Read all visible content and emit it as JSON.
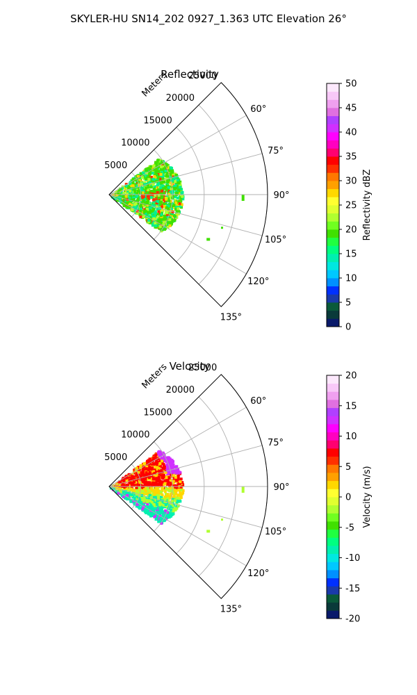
{
  "figure_title": "SKYLER-HU  SN14_202  0927_1.363 UTC Elevation 26°",
  "chart_data": [
    {
      "type": "polar-sector",
      "title": "Reflectivity",
      "theta_range_deg": [
        45,
        135
      ],
      "theta_ticks": [
        "60°",
        "75°",
        "90°",
        "105°",
        "120°",
        "135°"
      ],
      "r_ticks": [
        "5000",
        "10000",
        "15000",
        "20000",
        "25000"
      ],
      "r_label": "Meters",
      "r_max": 25000,
      "grid": true,
      "colorbar": {
        "label": "Reflectivity dBZ",
        "range": [
          0,
          50
        ],
        "ticks": [
          "0",
          "5",
          "10",
          "15",
          "20",
          "25",
          "30",
          "35",
          "40",
          "45",
          "50"
        ],
        "colors": [
          "#0a1a6a",
          "#0a3a3a",
          "#0a5a3a",
          "#1a3aaa",
          "#0030ff",
          "#0090ff",
          "#00c8ff",
          "#00e8e0",
          "#00f0b0",
          "#00ff80",
          "#20ff40",
          "#40e000",
          "#70ff20",
          "#b0ff30",
          "#e0ff30",
          "#ffff30",
          "#ffd800",
          "#ffa000",
          "#ff7800",
          "#ff3000",
          "#ff0000",
          "#ff0070",
          "#ff00c0",
          "#ff00ff",
          "#d030ff",
          "#b040ff",
          "#e070e0",
          "#f0a0f0",
          "#f8c8f8",
          "#fce8fc"
        ]
      },
      "echo_region": {
        "range_m": [
          0,
          11500
        ],
        "dominant_colors": [
          "#00f090",
          "#40e000",
          "#b0ff30",
          "#ffd800",
          "#ff3000"
        ]
      }
    },
    {
      "type": "polar-sector",
      "title": "Velocity",
      "theta_range_deg": [
        45,
        135
      ],
      "theta_ticks": [
        "60°",
        "75°",
        "90°",
        "105°",
        "120°",
        "135°"
      ],
      "r_ticks": [
        "5000",
        "10000",
        "15000",
        "20000",
        "25000"
      ],
      "r_label": "Meters",
      "r_max": 25000,
      "grid": true,
      "colorbar": {
        "label": "Velocity (m/s)",
        "range": [
          -20,
          20
        ],
        "ticks": [
          "-20",
          "-15",
          "-10",
          "-5",
          "0",
          "5",
          "10",
          "15",
          "20"
        ],
        "colors": [
          "#0a1a6a",
          "#0a3a3a",
          "#0a5a3a",
          "#1a3aaa",
          "#0030ff",
          "#0090ff",
          "#00c8ff",
          "#00e8e0",
          "#00f0b0",
          "#00ff80",
          "#20ff40",
          "#40e000",
          "#70ff20",
          "#b0ff30",
          "#e0ff30",
          "#ffff30",
          "#ffd800",
          "#ffa000",
          "#ff7800",
          "#ff3000",
          "#ff0000",
          "#ff0070",
          "#ff00c0",
          "#ff00ff",
          "#d030ff",
          "#b040ff",
          "#e070e0",
          "#f0a0f0",
          "#f8c8f8",
          "#fce8fc"
        ]
      },
      "echo_region": {
        "range_m": [
          0,
          11500
        ],
        "dominant_colors": [
          "#ff0000",
          "#ffd800",
          "#b0ff30",
          "#00f0b0",
          "#d030ff"
        ]
      }
    }
  ]
}
